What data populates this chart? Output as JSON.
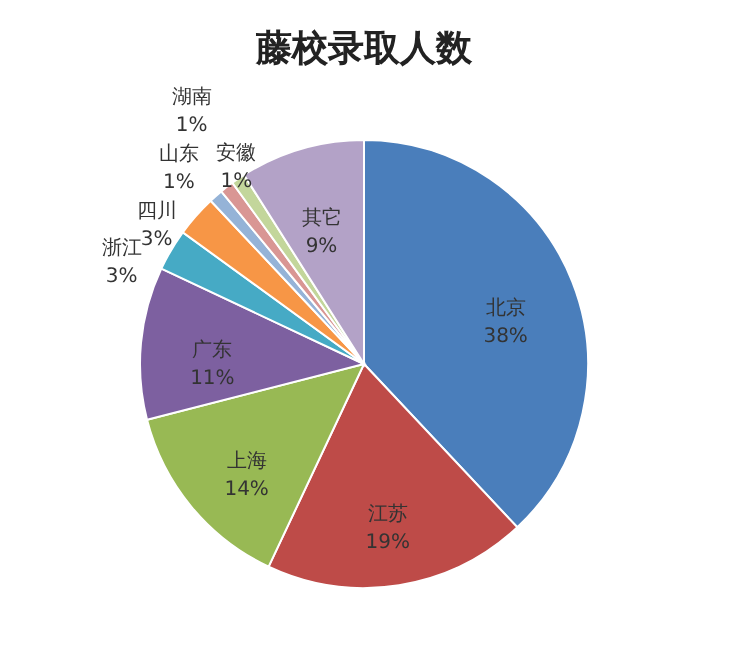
{
  "chart_data": {
    "type": "pie",
    "title": "藤校录取人数",
    "categories": [
      "北京",
      "江苏",
      "上海",
      "广东",
      "浙江",
      "四川",
      "山东",
      "湖南",
      "安徽",
      "其它"
    ],
    "values": [
      38,
      19,
      14,
      11,
      3,
      3,
      1,
      1,
      1,
      9
    ],
    "value_labels": [
      "38%",
      "19%",
      "14%",
      "11%",
      "3%",
      "3%",
      "1%",
      "1%",
      "1%",
      "9%"
    ],
    "colors": [
      "#4a7ebb",
      "#be4b48",
      "#98b954",
      "#7d60a0",
      "#46aac5",
      "#f79646",
      "#95b3d7",
      "#d99694",
      "#c3d69b",
      "#b3a2c7"
    ]
  }
}
